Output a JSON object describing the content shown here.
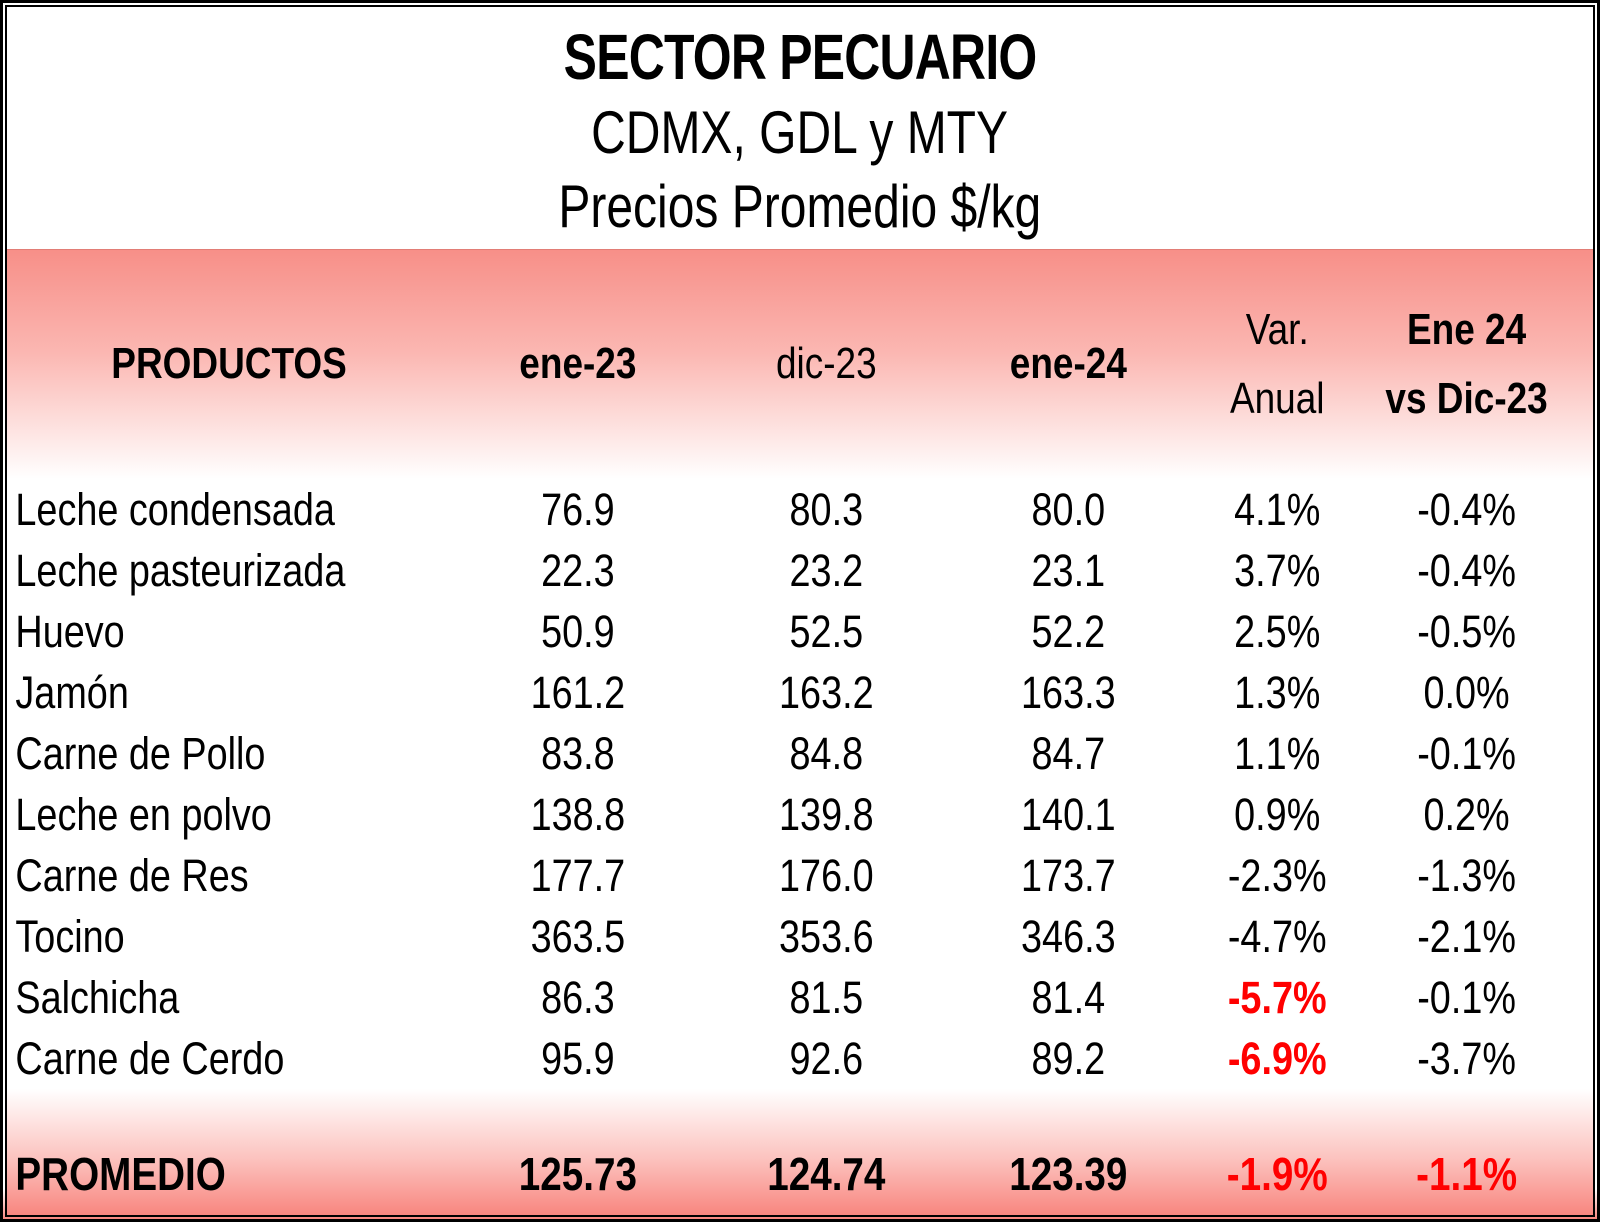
{
  "title": {
    "line1": "SECTOR PECUARIO",
    "line2": "CDMX, GDL y MTY",
    "line3": "Precios Promedio $/kg"
  },
  "table": {
    "header": {
      "products": "PRODUCTOS",
      "ene23": "ene-23",
      "dic23": "dic-23",
      "ene24": "ene-24",
      "var_line1": "Var.",
      "var_line2": "Anual",
      "vs_line1": "Ene 24",
      "vs_line2": "vs Dic-23"
    },
    "rows": [
      {
        "name": "Leche condensada",
        "ene23": "76.9",
        "dic23": "80.3",
        "ene24": "80.0",
        "var_anual": "4.1%",
        "vs_dic": "-0.4%"
      },
      {
        "name": "Leche pasteurizada",
        "ene23": "22.3",
        "dic23": "23.2",
        "ene24": "23.1",
        "var_anual": "3.7%",
        "vs_dic": "-0.4%"
      },
      {
        "name": "Huevo",
        "ene23": "50.9",
        "dic23": "52.5",
        "ene24": "52.2",
        "var_anual": "2.5%",
        "vs_dic": "-0.5%"
      },
      {
        "name": "Jamón",
        "ene23": "161.2",
        "dic23": "163.2",
        "ene24": "163.3",
        "var_anual": "1.3%",
        "vs_dic": "0.0%"
      },
      {
        "name": "Carne de Pollo",
        "ene23": "83.8",
        "dic23": "84.8",
        "ene24": "84.7",
        "var_anual": "1.1%",
        "vs_dic": "-0.1%"
      },
      {
        "name": "Leche en polvo",
        "ene23": "138.8",
        "dic23": "139.8",
        "ene24": "140.1",
        "var_anual": "0.9%",
        "vs_dic": "0.2%"
      },
      {
        "name": "Carne de Res",
        "ene23": "177.7",
        "dic23": "176.0",
        "ene24": "173.7",
        "var_anual": "-2.3%",
        "vs_dic": "-1.3%"
      },
      {
        "name": "Tocino",
        "ene23": "363.5",
        "dic23": "353.6",
        "ene24": "346.3",
        "var_anual": "-4.7%",
        "vs_dic": "-2.1%"
      },
      {
        "name": "Salchicha",
        "ene23": "86.3",
        "dic23": "81.5",
        "ene24": "81.4",
        "var_anual": "-5.7%",
        "vs_dic": "-0.1%"
      },
      {
        "name": "Carne de Cerdo",
        "ene23": "95.9",
        "dic23": "92.6",
        "ene24": "89.2",
        "var_anual": "-6.9%",
        "vs_dic": "-3.7%"
      }
    ],
    "footer": {
      "name": "PROMEDIO",
      "ene23": "125.73",
      "dic23": "124.74",
      "ene24": "123.39",
      "var_anual": "-1.9%",
      "vs_dic": "-1.1%"
    }
  },
  "colors": {
    "band_pink_top": "#f78f88",
    "band_pink_mid": "#fbb7b2",
    "footer_pink_deep": "#f8867f",
    "negative_red": "#ff0000",
    "text_black": "#000000"
  },
  "chart_data": {
    "type": "table",
    "title": "SECTOR PECUARIO",
    "subtitle": "CDMX, GDL y MTY — Precios Promedio $/kg",
    "columns": [
      "PRODUCTOS",
      "ene-23",
      "dic-23",
      "ene-24",
      "Var. Anual",
      "Ene 24 vs Dic-23"
    ],
    "rows": [
      [
        "Leche condensada",
        76.9,
        80.3,
        80.0,
        "4.1%",
        "-0.4%"
      ],
      [
        "Leche pasteurizada",
        22.3,
        23.2,
        23.1,
        "3.7%",
        "-0.4%"
      ],
      [
        "Huevo",
        50.9,
        52.5,
        52.2,
        "2.5%",
        "-0.5%"
      ],
      [
        "Jamón",
        161.2,
        163.2,
        163.3,
        "1.3%",
        "0.0%"
      ],
      [
        "Carne de Pollo",
        83.8,
        84.8,
        84.7,
        "1.1%",
        "-0.1%"
      ],
      [
        "Leche en polvo",
        138.8,
        139.8,
        140.1,
        "0.9%",
        "0.2%"
      ],
      [
        "Carne de Res",
        177.7,
        176.0,
        173.7,
        "-2.3%",
        "-1.3%"
      ],
      [
        "Tocino",
        363.5,
        353.6,
        346.3,
        "-4.7%",
        "-2.1%"
      ],
      [
        "Salchicha",
        86.3,
        81.5,
        81.4,
        "-5.7%",
        "-0.1%"
      ],
      [
        "Carne de Cerdo",
        95.9,
        92.6,
        89.2,
        "-6.9%",
        "-3.7%"
      ]
    ],
    "footer_row": [
      "PROMEDIO",
      125.73,
      124.74,
      123.39,
      "-1.9%",
      "-1.1%"
    ],
    "red_highlighted_cells": [
      "Salchicha Var. Anual",
      "Carne de Cerdo Var. Anual",
      "PROMEDIO Var. Anual",
      "PROMEDIO Ene 24 vs Dic-23"
    ],
    "units": "$/kg"
  }
}
